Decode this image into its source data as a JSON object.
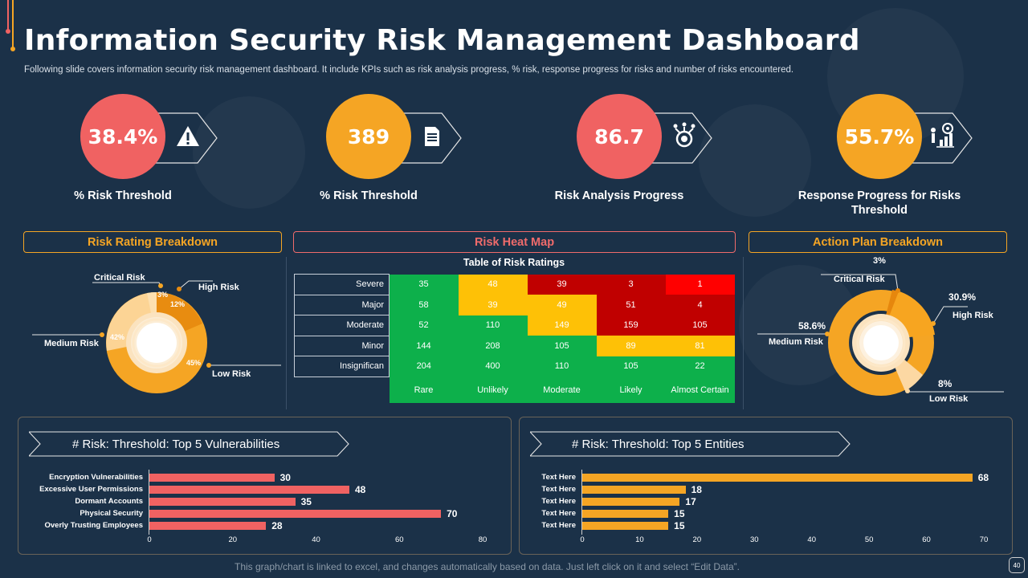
{
  "header": {
    "title": "Information Security Risk Management Dashboard",
    "subtitle": "Following slide covers information security risk management dashboard. It include KPIs such as risk analysis progress, % risk, response progress for risks and number of risks encountered."
  },
  "kpis": [
    {
      "value": "38.4%",
      "label": "% Risk Threshold",
      "color": "#f06262",
      "icon": "warning-icon"
    },
    {
      "value": "389",
      "label": "% Risk Threshold",
      "color": "#f5a524",
      "icon": "document-icon"
    },
    {
      "value": "86.7",
      "label": "Risk Analysis  Progress",
      "color": "#f06262",
      "icon": "target-analysis-icon"
    },
    {
      "value": "55.7%",
      "label": "Response Progress for Risks Threshold",
      "color": "#f5a524",
      "icon": "growth-chart-icon"
    }
  ],
  "sections": {
    "risk_rating": "Risk Rating Breakdown",
    "heat_map": "Risk Heat Map",
    "action_plan": "Action Plan Breakdown"
  },
  "risk_rating": {
    "labels": {
      "critical": "Critical Risk",
      "high": "High Risk",
      "medium": "Medium Risk",
      "low": "Low Risk"
    },
    "pct": {
      "critical": "3%",
      "high": "12%",
      "medium": "42%",
      "low": "45%"
    }
  },
  "heat_map": {
    "table_title": "Table of Risk Ratings",
    "rows": [
      "Severe",
      "Major",
      "Moderate",
      "Minor",
      "Insignifican"
    ],
    "cols": [
      "Rare",
      "Unlikely",
      "Moderate",
      "Likely",
      "Almost Certain"
    ],
    "values": [
      [
        "35",
        "48",
        "39",
        "3",
        "1"
      ],
      [
        "58",
        "39",
        "49",
        "51",
        "4"
      ],
      [
        "52",
        "110",
        "149",
        "159",
        "105"
      ],
      [
        "144",
        "208",
        "105",
        "89",
        "81"
      ],
      [
        "204",
        "400",
        "110",
        "105",
        "22"
      ]
    ],
    "colors": [
      [
        "#0db04b",
        "#fec106",
        "#c00000",
        "#c00000",
        "#ff0000"
      ],
      [
        "#0db04b",
        "#fec106",
        "#fec106",
        "#c00000",
        "#c00000"
      ],
      [
        "#0db04b",
        "#0db04b",
        "#fec106",
        "#c00000",
        "#c00000"
      ],
      [
        "#0db04b",
        "#0db04b",
        "#0db04b",
        "#fec106",
        "#fec106"
      ],
      [
        "#0db04b",
        "#0db04b",
        "#0db04b",
        "#0db04b",
        "#0db04b"
      ]
    ]
  },
  "action_plan": {
    "labels": {
      "critical": "Critical Risk",
      "high": "High Risk",
      "medium": "Medium Risk",
      "low": "Low Risk"
    },
    "pct": {
      "critical": "3%",
      "high": "30.9%",
      "medium": "58.6%",
      "low": "8%"
    }
  },
  "vuln_panel": {
    "title": "# Risk: Threshold:  Top 5 Vulnerabilities"
  },
  "entity_panel": {
    "title": "# Risk: Threshold:  Top 5 Entities"
  },
  "chart_data": [
    {
      "type": "bar",
      "categories": [
        "Encryption Vulnerabilities",
        "Excessive User Permissions",
        "Dormant Accounts",
        "Physical Security",
        "Overly Trusting Employees"
      ],
      "values": [
        30,
        48,
        35,
        70,
        28
      ],
      "xlim": [
        0,
        80
      ],
      "ticks": [
        0,
        20,
        40,
        60,
        80
      ],
      "color": "#f06262"
    },
    {
      "type": "bar",
      "categories": [
        "Text Here",
        "Text Here",
        "Text Here",
        "Text Here",
        "Text Here"
      ],
      "values": [
        68,
        18,
        17,
        15,
        15
      ],
      "xlim": [
        0,
        70
      ],
      "ticks": [
        0,
        10,
        20,
        30,
        40,
        50,
        60,
        70
      ],
      "color": "#f5a524"
    }
  ],
  "footer": {
    "note": "This graph/chart is linked to excel, and changes automatically based on data.  Just left click on it and select “Edit Data”.",
    "page": "40"
  }
}
